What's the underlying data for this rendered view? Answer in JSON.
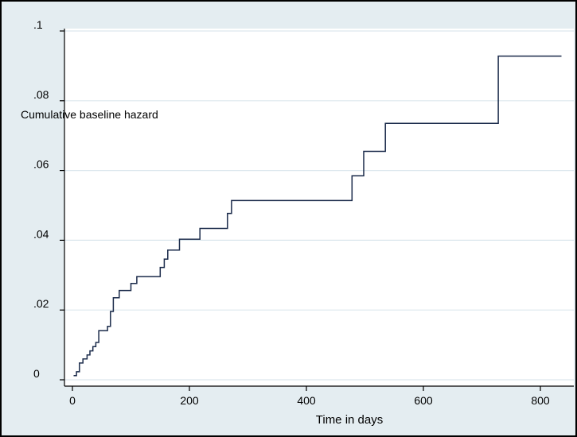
{
  "chart_data": {
    "type": "line",
    "step": true,
    "title": "",
    "xlabel": "Time in days",
    "ylabel": "Cumulative baseline hazard",
    "xlim": [
      0,
      800
    ],
    "ylim": [
      0,
      0.1
    ],
    "x_ticks": [
      0,
      200,
      400,
      600,
      800
    ],
    "x_tick_labels": [
      "0",
      "200",
      "400",
      "600",
      "800"
    ],
    "y_ticks": [
      0,
      0.02,
      0.04,
      0.06,
      0.08,
      0.1
    ],
    "y_tick_labels": [
      "0",
      ".02",
      ".04",
      ".06",
      ".08",
      ".1"
    ],
    "grid": "horizontal",
    "legend": "none",
    "colors": {
      "background": "#e4edf1",
      "plot_area": "#ffffff",
      "line": "#1a2a4a",
      "grid": "#dde8ee"
    },
    "series": [
      {
        "x": [
          2,
          7,
          12,
          18,
          25,
          30,
          35,
          40,
          45,
          60,
          65,
          70,
          80,
          100,
          110,
          150,
          157,
          163,
          183,
          218,
          265,
          272,
          280,
          478,
          498,
          535,
          728,
          836
        ],
        "y": [
          0.0012,
          0.0023,
          0.0048,
          0.006,
          0.0071,
          0.0083,
          0.0095,
          0.0107,
          0.0141,
          0.0153,
          0.0196,
          0.0235,
          0.0256,
          0.0276,
          0.0296,
          0.0322,
          0.0346,
          0.0372,
          0.0403,
          0.0434,
          0.0477,
          0.0514,
          0.0514,
          0.0585,
          0.0655,
          0.0735,
          0.0928,
          0.0928
        ]
      }
    ]
  }
}
